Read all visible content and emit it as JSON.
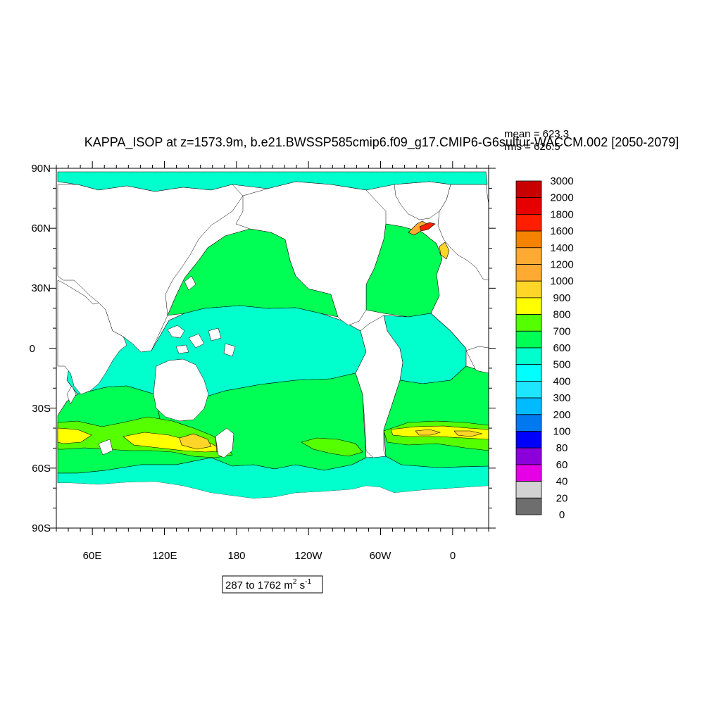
{
  "title": "KAPPA_ISOP at z=1573.9m, b.e21.BWSSP585cmip6.f09_g17.CMIP6-G6sulfur-WACCM.002 [2050-2079]",
  "stats": {
    "mean": "mean = 623.3",
    "rms": "rms = 626.5"
  },
  "map": {
    "lat_ticks": [
      "90N",
      "60N",
      "30N",
      "0",
      "30S",
      "60S",
      "90S"
    ],
    "lon_ticks": [
      "60E",
      "120E",
      "180",
      "120W",
      "60W",
      "0"
    ],
    "lon_range": [
      30,
      390
    ],
    "lat_range": [
      -90,
      90
    ],
    "land_color": "#ffffff",
    "contour_line_color": "#000000",
    "bands": [
      {
        "name": "arctic",
        "fill": "#00ffcc"
      },
      {
        "name": "north-pacific",
        "fill": "#00ff55"
      },
      {
        "name": "north-atlantic",
        "fill": "#00ff55"
      },
      {
        "name": "tropical-indo-pacific",
        "fill": "#00ffcc"
      },
      {
        "name": "tropical-atlantic",
        "fill": "#00ffcc"
      },
      {
        "name": "south-pacific",
        "fill": "#00ff55"
      },
      {
        "name": "south-indian",
        "fill": "#00ff55"
      },
      {
        "name": "south-atlantic",
        "fill": "#00ff55"
      },
      {
        "name": "southern-ocean",
        "fill": "#00ffcc"
      },
      {
        "name": "sh-westerly-700",
        "fill": "#55ff00"
      },
      {
        "name": "sh-westerly-800",
        "fill": "#ffff00"
      },
      {
        "name": "sh-westerly-900",
        "fill": "#ffd528"
      }
    ]
  },
  "colorbar": {
    "labels": [
      "3000",
      "2000",
      "1800",
      "1600",
      "1400",
      "1200",
      "1000",
      "900",
      "800",
      "700",
      "600",
      "500",
      "400",
      "300",
      "200",
      "100",
      "80",
      "60",
      "40",
      "20",
      "0"
    ],
    "colors": [
      "#c80000",
      "#e60000",
      "#ff1e00",
      "#f58200",
      "#ffaa32",
      "#ffaa32",
      "#ffd528",
      "#ffff00",
      "#55ff00",
      "#00ff55",
      "#00ffcc",
      "#00ffff",
      "#1ee6ff",
      "#00bbff",
      "#0078f0",
      "#0000ff",
      "#8c00dc",
      "#e600e6",
      "#d2d2d2",
      "#6e6e6e"
    ]
  },
  "range_label": {
    "prefix": "287 to 1762 m",
    "sup1": "2",
    "mid": " s",
    "sup2": "-1"
  }
}
